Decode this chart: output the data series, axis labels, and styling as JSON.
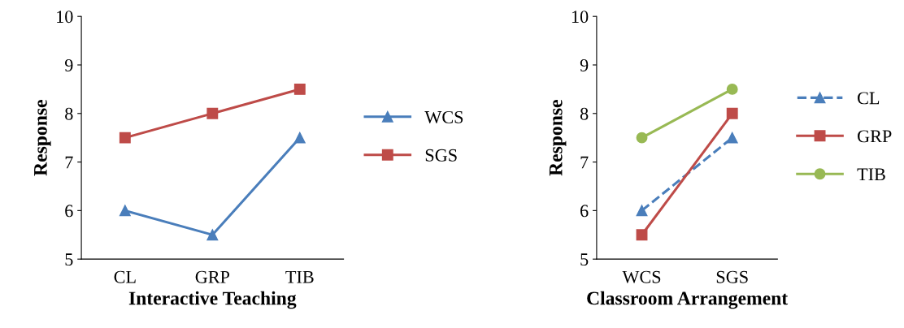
{
  "chart_data": [
    {
      "type": "line",
      "xlabel": "Interactive Teaching",
      "ylabel": "Response",
      "categories": [
        "CL",
        "GRP",
        "TIB"
      ],
      "ylim": [
        5,
        10
      ],
      "yticks": [
        5,
        6,
        7,
        8,
        9,
        10
      ],
      "grid": false,
      "legend": "right",
      "series": [
        {
          "name": "WCS",
          "color": "#4a7ebb",
          "values": [
            6,
            5.5,
            7.5
          ],
          "marker": "triangle",
          "line_style": "solid"
        },
        {
          "name": "SGS",
          "color": "#be4b48",
          "values": [
            7.5,
            8,
            8.5
          ],
          "marker": "square",
          "line_style": "solid"
        }
      ]
    },
    {
      "type": "line",
      "xlabel": "Classroom Arrangement",
      "ylabel": "Response",
      "categories": [
        "WCS",
        "SGS"
      ],
      "ylim": [
        5,
        10
      ],
      "yticks": [
        5,
        6,
        7,
        8,
        9,
        10
      ],
      "grid": false,
      "legend": "right",
      "series": [
        {
          "name": "CL",
          "color": "#4a7ebb",
          "values": [
            6,
            7.5
          ],
          "marker": "triangle",
          "line_style": "dashed"
        },
        {
          "name": "GRP",
          "color": "#be4b48",
          "values": [
            5.5,
            8
          ],
          "marker": "square",
          "line_style": "solid"
        },
        {
          "name": "TIB",
          "color": "#98b954",
          "values": [
            7.5,
            8.5
          ],
          "marker": "circle",
          "line_style": "solid"
        }
      ]
    }
  ]
}
